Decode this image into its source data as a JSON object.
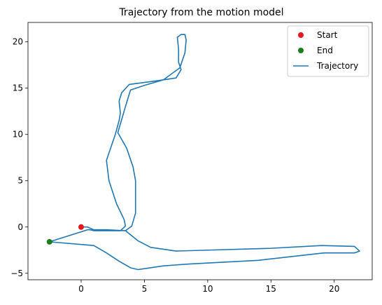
{
  "chart_data": {
    "type": "line",
    "title": "Trajectory from the motion model",
    "xlabel": "",
    "ylabel": "",
    "xlim": [
      -4.2,
      23.0
    ],
    "ylim": [
      -5.7,
      22.1
    ],
    "xticks": [
      0,
      5,
      10,
      15,
      20
    ],
    "yticks": [
      -5,
      0,
      5,
      10,
      15,
      20
    ],
    "xtick_labels": [
      "0",
      "5",
      "10",
      "15",
      "20"
    ],
    "ytick_labels": [
      "−5",
      "0",
      "5",
      "10",
      "15",
      "20"
    ],
    "grid": false,
    "legend_position": "top-right",
    "legend": [
      "Start",
      "End",
      "Trajectory"
    ],
    "series": [
      {
        "name": "Start",
        "kind": "point",
        "color": "#e31a1c",
        "x": [
          0.0
        ],
        "y": [
          0.0
        ]
      },
      {
        "name": "End",
        "kind": "point",
        "color": "#1a7f1a",
        "x": [
          -2.5
        ],
        "y": [
          -1.6
        ]
      },
      {
        "name": "Trajectory",
        "kind": "line",
        "color": "#1f77b4",
        "x": [
          0.0,
          0.5,
          1.0,
          2.0,
          3.5,
          4.0,
          4.3,
          4.3,
          4.1,
          3.6,
          2.9,
          3.5,
          3.9,
          5.0,
          6.5,
          7.8,
          8.2,
          8.3,
          8.2,
          7.9,
          7.6,
          7.7,
          7.7,
          7.9,
          7.5,
          6.0,
          3.8,
          3.2,
          3.0,
          3.1,
          3.0,
          2.7,
          2.2,
          2.0,
          2.2,
          2.8,
          3.4,
          3.5,
          3.1,
          2.5,
          1.0,
          0.7,
          0.5,
          -2.5
        ],
        "y": [
          0.0,
          0.0,
          -0.3,
          -0.3,
          -0.4,
          0.1,
          1.5,
          5.0,
          6.5,
          8.5,
          10.2,
          13.0,
          14.8,
          15.3,
          15.9,
          17.2,
          18.8,
          20.2,
          20.8,
          20.8,
          20.5,
          19.2,
          17.8,
          17.0,
          16.1,
          15.8,
          15.4,
          14.5,
          13.6,
          12.3,
          11.5,
          10.0,
          8.0,
          7.2,
          5.0,
          2.5,
          0.8,
          0.1,
          -0.4,
          -0.4,
          -0.4,
          -0.3,
          -0.3,
          -1.6
        ]
      },
      {
        "name": "Trajectory",
        "kind": "line",
        "color": "#1f77b4",
        "x": [
          3.5,
          4.5,
          5.5,
          7.5,
          10.0,
          15.0,
          19.0,
          21.6,
          22.0,
          21.6,
          19.2,
          14.0,
          8.5,
          6.5,
          5.0,
          4.5,
          3.9,
          3.0,
          2.0,
          1.0,
          -2.5
        ],
        "y": [
          -0.4,
          -1.5,
          -2.2,
          -2.6,
          -2.5,
          -2.3,
          -2.0,
          -2.1,
          -2.6,
          -2.8,
          -2.8,
          -3.6,
          -4.0,
          -4.2,
          -4.5,
          -4.6,
          -4.4,
          -3.7,
          -2.8,
          -2.0,
          -1.6
        ]
      }
    ]
  }
}
